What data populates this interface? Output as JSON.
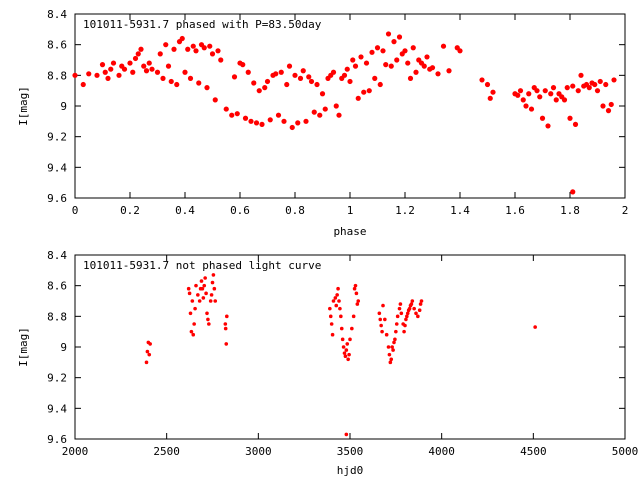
{
  "chart_data": [
    {
      "type": "scatter",
      "title": "101011-5931.7 phased with P=83.50day",
      "xlabel": "phase",
      "ylabel": "I[mag]",
      "xlim": [
        0,
        2
      ],
      "ylim": [
        8.4,
        9.6
      ],
      "y_inverted": true,
      "xticks": [
        "0",
        "0.2",
        "0.4",
        "0.6",
        "0.8",
        "1",
        "1.2",
        "1.4",
        "1.6",
        "1.8",
        "2"
      ],
      "yticks": [
        "8.4",
        "8.6",
        "8.8",
        "9",
        "9.2",
        "9.4",
        "9.6"
      ],
      "color": "#ff0000",
      "marker": "dot",
      "points": [
        [
          0.0,
          8.8
        ],
        [
          0.03,
          8.86
        ],
        [
          0.05,
          8.79
        ],
        [
          0.08,
          8.8
        ],
        [
          0.1,
          8.73
        ],
        [
          0.11,
          8.78
        ],
        [
          0.12,
          8.82
        ],
        [
          0.13,
          8.76
        ],
        [
          0.14,
          8.72
        ],
        [
          0.16,
          8.8
        ],
        [
          0.17,
          8.74
        ],
        [
          0.18,
          8.76
        ],
        [
          0.2,
          8.72
        ],
        [
          0.21,
          8.78
        ],
        [
          0.22,
          8.69
        ],
        [
          0.23,
          8.66
        ],
        [
          0.24,
          8.63
        ],
        [
          0.25,
          8.74
        ],
        [
          0.26,
          8.77
        ],
        [
          0.27,
          8.72
        ],
        [
          0.28,
          8.76
        ],
        [
          0.3,
          8.78
        ],
        [
          0.31,
          8.66
        ],
        [
          0.32,
          8.82
        ],
        [
          0.33,
          8.6
        ],
        [
          0.34,
          8.74
        ],
        [
          0.35,
          8.84
        ],
        [
          0.36,
          8.63
        ],
        [
          0.37,
          8.86
        ],
        [
          0.38,
          8.58
        ],
        [
          0.39,
          8.56
        ],
        [
          0.4,
          8.78
        ],
        [
          0.41,
          8.63
        ],
        [
          0.42,
          8.82
        ],
        [
          0.43,
          8.61
        ],
        [
          0.44,
          8.64
        ],
        [
          0.45,
          8.85
        ],
        [
          0.46,
          8.6
        ],
        [
          0.47,
          8.62
        ],
        [
          0.48,
          8.88
        ],
        [
          0.49,
          8.61
        ],
        [
          0.5,
          8.66
        ],
        [
          0.51,
          8.96
        ],
        [
          0.52,
          8.64
        ],
        [
          0.53,
          8.7
        ],
        [
          0.55,
          9.02
        ],
        [
          0.57,
          9.06
        ],
        [
          0.58,
          8.81
        ],
        [
          0.59,
          9.05
        ],
        [
          0.6,
          8.72
        ],
        [
          0.61,
          8.73
        ],
        [
          0.62,
          9.08
        ],
        [
          0.63,
          8.78
        ],
        [
          0.64,
          9.1
        ],
        [
          0.65,
          8.85
        ],
        [
          0.66,
          9.11
        ],
        [
          0.67,
          8.9
        ],
        [
          0.68,
          9.12
        ],
        [
          0.69,
          8.88
        ],
        [
          0.7,
          8.84
        ],
        [
          0.71,
          9.09
        ],
        [
          0.72,
          8.8
        ],
        [
          0.73,
          8.79
        ],
        [
          0.74,
          9.06
        ],
        [
          0.75,
          8.78
        ],
        [
          0.76,
          9.1
        ],
        [
          0.77,
          8.86
        ],
        [
          0.78,
          8.74
        ],
        [
          0.79,
          9.14
        ],
        [
          0.8,
          8.8
        ],
        [
          0.81,
          9.11
        ],
        [
          0.82,
          8.82
        ],
        [
          0.83,
          8.77
        ],
        [
          0.84,
          9.1
        ],
        [
          0.85,
          8.81
        ],
        [
          0.86,
          8.84
        ],
        [
          0.87,
          9.04
        ],
        [
          0.88,
          8.86
        ],
        [
          0.89,
          9.06
        ],
        [
          0.9,
          8.92
        ],
        [
          0.91,
          9.02
        ],
        [
          0.92,
          8.82
        ],
        [
          0.93,
          8.8
        ],
        [
          0.94,
          8.78
        ],
        [
          0.95,
          9.0
        ],
        [
          0.96,
          9.06
        ],
        [
          0.97,
          8.82
        ],
        [
          0.98,
          8.8
        ],
        [
          0.99,
          8.76
        ],
        [
          1.0,
          8.84
        ],
        [
          1.01,
          8.7
        ],
        [
          1.02,
          8.74
        ],
        [
          1.03,
          8.95
        ],
        [
          1.04,
          8.68
        ],
        [
          1.05,
          8.91
        ],
        [
          1.06,
          8.72
        ],
        [
          1.07,
          8.9
        ],
        [
          1.08,
          8.65
        ],
        [
          1.09,
          8.82
        ],
        [
          1.1,
          8.62
        ],
        [
          1.11,
          8.86
        ],
        [
          1.12,
          8.64
        ],
        [
          1.13,
          8.73
        ],
        [
          1.14,
          8.53
        ],
        [
          1.15,
          8.74
        ],
        [
          1.16,
          8.58
        ],
        [
          1.17,
          8.7
        ],
        [
          1.18,
          8.55
        ],
        [
          1.19,
          8.66
        ],
        [
          1.2,
          8.64
        ],
        [
          1.21,
          8.72
        ],
        [
          1.22,
          8.82
        ],
        [
          1.23,
          8.62
        ],
        [
          1.24,
          8.78
        ],
        [
          1.25,
          8.7
        ],
        [
          1.26,
          8.72
        ],
        [
          1.27,
          8.74
        ],
        [
          1.28,
          8.68
        ],
        [
          1.29,
          8.76
        ],
        [
          1.3,
          8.75
        ],
        [
          1.32,
          8.79
        ],
        [
          1.34,
          8.61
        ],
        [
          1.36,
          8.77
        ],
        [
          1.39,
          8.62
        ],
        [
          1.4,
          8.64
        ],
        [
          1.48,
          8.83
        ],
        [
          1.5,
          8.86
        ],
        [
          1.51,
          8.95
        ],
        [
          1.52,
          8.91
        ],
        [
          1.6,
          8.92
        ],
        [
          1.61,
          8.93
        ],
        [
          1.62,
          8.9
        ],
        [
          1.63,
          8.96
        ],
        [
          1.64,
          9.0
        ],
        [
          1.65,
          8.92
        ],
        [
          1.66,
          9.02
        ],
        [
          1.67,
          8.88
        ],
        [
          1.68,
          8.9
        ],
        [
          1.69,
          8.94
        ],
        [
          1.7,
          9.08
        ],
        [
          1.71,
          8.9
        ],
        [
          1.72,
          9.13
        ],
        [
          1.73,
          8.92
        ],
        [
          1.74,
          8.88
        ],
        [
          1.75,
          8.96
        ],
        [
          1.76,
          8.92
        ],
        [
          1.77,
          8.94
        ],
        [
          1.78,
          8.96
        ],
        [
          1.79,
          8.88
        ],
        [
          1.8,
          9.08
        ],
        [
          1.81,
          8.87
        ],
        [
          1.82,
          9.12
        ],
        [
          1.83,
          8.9
        ],
        [
          1.84,
          8.8
        ],
        [
          1.85,
          8.87
        ],
        [
          1.86,
          8.86
        ],
        [
          1.87,
          8.88
        ],
        [
          1.88,
          8.85
        ],
        [
          1.89,
          8.86
        ],
        [
          1.9,
          8.9
        ],
        [
          1.91,
          8.84
        ],
        [
          1.92,
          9.0
        ],
        [
          1.93,
          8.86
        ],
        [
          1.94,
          9.03
        ],
        [
          1.95,
          8.99
        ],
        [
          1.96,
          8.83
        ],
        [
          1.81,
          9.56
        ]
      ]
    },
    {
      "type": "scatter",
      "title": "101011-5931.7 not phased light curve",
      "xlabel": "hjd0",
      "ylabel": "I[mag]",
      "xlim": [
        2000,
        5000
      ],
      "ylim": [
        8.4,
        9.6
      ],
      "y_inverted": true,
      "xticks": [
        "2000",
        "2500",
        "3000",
        "3500",
        "4000",
        "4500",
        "5000"
      ],
      "yticks": [
        "8.4",
        "8.6",
        "8.8",
        "9",
        "9.2",
        "9.4",
        "9.6"
      ],
      "color": "#ff0000",
      "marker": "dot",
      "points": [
        [
          2390,
          9.1
        ],
        [
          2395,
          9.03
        ],
        [
          2400,
          8.97
        ],
        [
          2405,
          9.05
        ],
        [
          2410,
          8.98
        ],
        [
          2620,
          8.62
        ],
        [
          2625,
          8.65
        ],
        [
          2630,
          8.78
        ],
        [
          2635,
          8.9
        ],
        [
          2640,
          8.7
        ],
        [
          2645,
          8.92
        ],
        [
          2650,
          8.85
        ],
        [
          2655,
          8.75
        ],
        [
          2660,
          8.6
        ],
        [
          2670,
          8.66
        ],
        [
          2680,
          8.7
        ],
        [
          2685,
          8.62
        ],
        [
          2690,
          8.57
        ],
        [
          2695,
          8.62
        ],
        [
          2700,
          8.68
        ],
        [
          2705,
          8.6
        ],
        [
          2710,
          8.55
        ],
        [
          2715,
          8.65
        ],
        [
          2720,
          8.78
        ],
        [
          2725,
          8.82
        ],
        [
          2730,
          8.85
        ],
        [
          2740,
          8.7
        ],
        [
          2745,
          8.66
        ],
        [
          2750,
          8.58
        ],
        [
          2755,
          8.53
        ],
        [
          2760,
          8.62
        ],
        [
          2765,
          8.7
        ],
        [
          2820,
          8.85
        ],
        [
          2822,
          8.88
        ],
        [
          2825,
          8.98
        ],
        [
          2828,
          8.8
        ],
        [
          3390,
          8.75
        ],
        [
          3395,
          8.8
        ],
        [
          3400,
          8.85
        ],
        [
          3405,
          8.92
        ],
        [
          3410,
          8.7
        ],
        [
          3420,
          8.68
        ],
        [
          3425,
          8.73
        ],
        [
          3430,
          8.66
        ],
        [
          3435,
          8.62
        ],
        [
          3440,
          8.7
        ],
        [
          3445,
          8.75
        ],
        [
          3450,
          8.8
        ],
        [
          3455,
          8.88
        ],
        [
          3460,
          8.95
        ],
        [
          3465,
          9.0
        ],
        [
          3470,
          9.04
        ],
        [
          3475,
          9.06
        ],
        [
          3480,
          9.02
        ],
        [
          3485,
          8.98
        ],
        [
          3490,
          9.08
        ],
        [
          3495,
          9.05
        ],
        [
          3500,
          8.95
        ],
        [
          3510,
          8.88
        ],
        [
          3520,
          8.8
        ],
        [
          3525,
          8.62
        ],
        [
          3530,
          8.6
        ],
        [
          3535,
          8.65
        ],
        [
          3540,
          8.72
        ],
        [
          3545,
          8.7
        ],
        [
          3480,
          9.57
        ],
        [
          3660,
          8.78
        ],
        [
          3665,
          8.82
        ],
        [
          3670,
          8.86
        ],
        [
          3675,
          8.9
        ],
        [
          3680,
          8.73
        ],
        [
          3690,
          8.82
        ],
        [
          3700,
          8.92
        ],
        [
          3710,
          9.0
        ],
        [
          3715,
          9.05
        ],
        [
          3720,
          9.1
        ],
        [
          3725,
          9.08
        ],
        [
          3730,
          9.0
        ],
        [
          3735,
          9.02
        ],
        [
          3740,
          8.97
        ],
        [
          3745,
          8.95
        ],
        [
          3750,
          8.9
        ],
        [
          3755,
          8.85
        ],
        [
          3760,
          8.8
        ],
        [
          3770,
          8.75
        ],
        [
          3775,
          8.72
        ],
        [
          3780,
          8.78
        ],
        [
          3790,
          8.85
        ],
        [
          3795,
          8.9
        ],
        [
          3800,
          8.86
        ],
        [
          3805,
          8.82
        ],
        [
          3810,
          8.8
        ],
        [
          3815,
          8.78
        ],
        [
          3820,
          8.76
        ],
        [
          3825,
          8.75
        ],
        [
          3830,
          8.73
        ],
        [
          3835,
          8.72
        ],
        [
          3840,
          8.7
        ],
        [
          3850,
          8.75
        ],
        [
          3860,
          8.78
        ],
        [
          3870,
          8.8
        ],
        [
          3880,
          8.76
        ],
        [
          3885,
          8.72
        ],
        [
          3890,
          8.7
        ],
        [
          4510,
          8.87
        ]
      ]
    }
  ]
}
